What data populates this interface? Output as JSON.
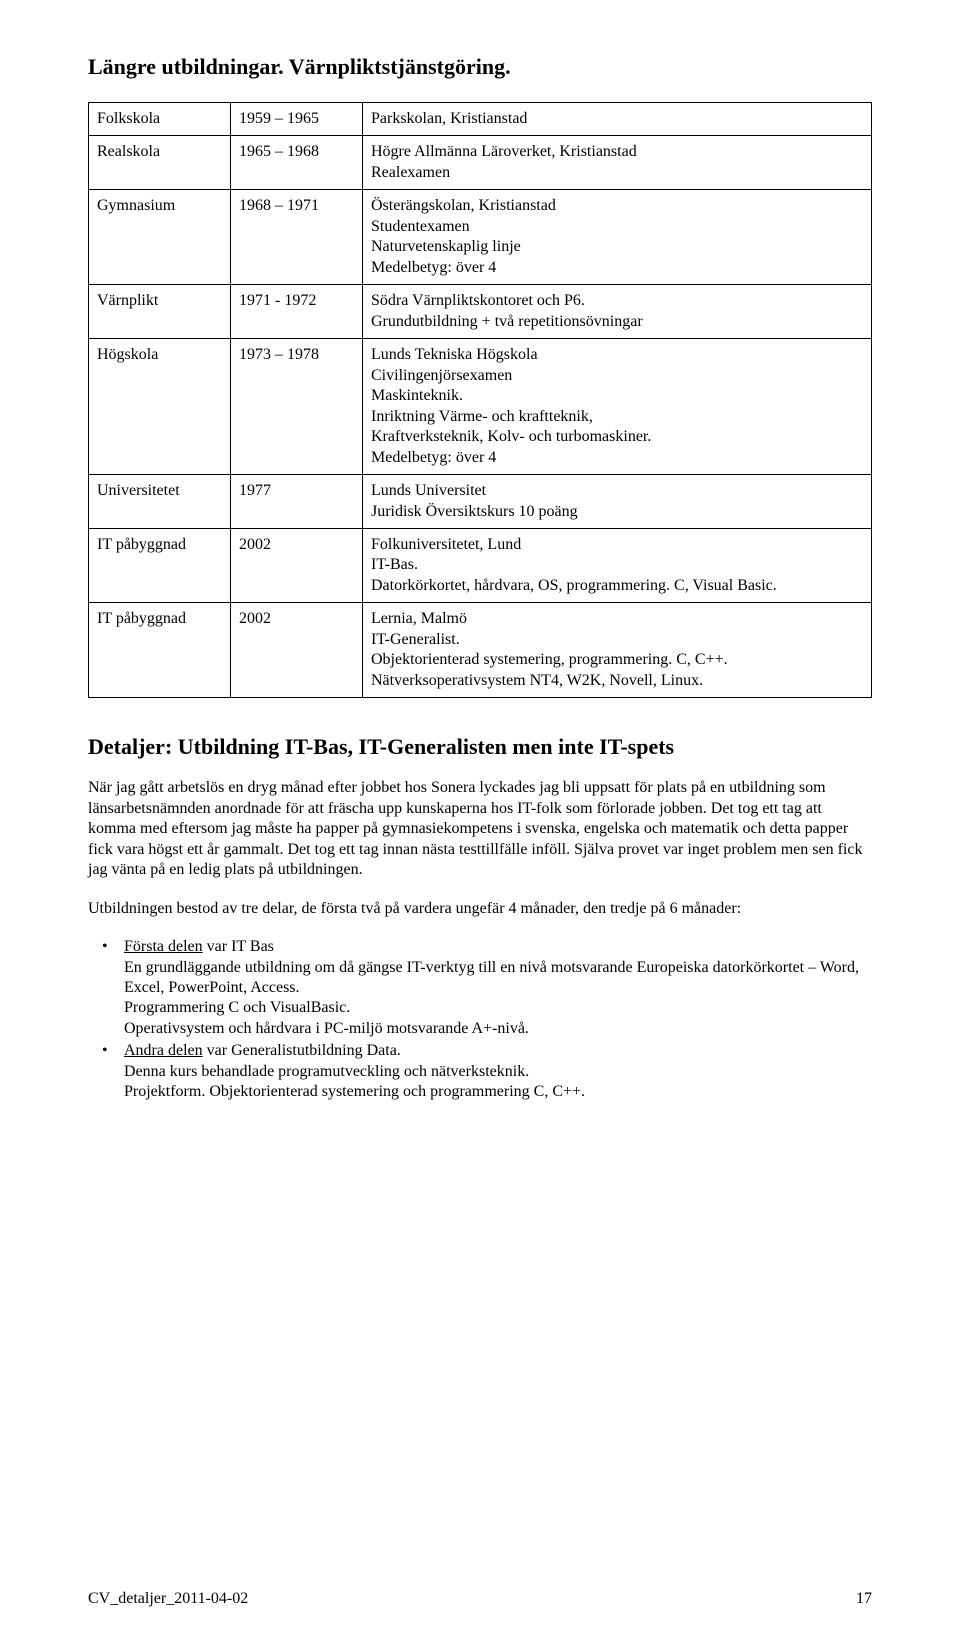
{
  "heading": "Längre utbildningar. Värnpliktstjänstgöring.",
  "table": {
    "rows": [
      {
        "c1": "Folkskola",
        "c2": "1959 – 1965",
        "c3": "Parkskolan, Kristianstad"
      },
      {
        "c1": "Realskola",
        "c2": "1965 – 1968",
        "c3": "Högre Allmänna Läroverket, Kristianstad\nRealexamen"
      },
      {
        "c1": "Gymnasium",
        "c2": "1968 – 1971",
        "c3": "Österängskolan, Kristianstad\nStudentexamen\nNaturvetenskaplig linje\nMedelbetyg: över 4"
      },
      {
        "c1": "Värnplikt",
        "c2": "1971 - 1972",
        "c3": "Södra Värnpliktskontoret och P6.\nGrundutbildning + två repetitionsövningar"
      },
      {
        "c1": "Högskola",
        "c2": "1973 – 1978",
        "c3": "Lunds Tekniska Högskola\nCivilingenjörsexamen\nMaskinteknik.\nInriktning Värme- och kraftteknik,\nKraftverksteknik, Kolv- och turbomaskiner.\nMedelbetyg: över 4"
      },
      {
        "c1": "Universitetet",
        "c2": "1977",
        "c3": "Lunds Universitet\nJuridisk Översiktskurs 10 poäng"
      },
      {
        "c1": "IT påbyggnad",
        "c2": "2002",
        "c3": "Folkuniversitetet, Lund\nIT-Bas.\nDatorkörkortet, hårdvara, OS, programmering. C, Visual Basic."
      },
      {
        "c1": "IT påbyggnad",
        "c2": "2002",
        "c3": "Lernia, Malmö\nIT-Generalist.\nObjektorienterad systemering, programmering. C, C++. Nätverksoperativsystem NT4, W2K, Novell, Linux."
      }
    ]
  },
  "subheading": "Detaljer: Utbildning IT-Bas, IT-Generalisten men inte IT-spets",
  "para1": "När jag gått arbetslös en dryg månad efter jobbet hos Sonera lyckades jag bli uppsatt för plats på en utbildning som länsarbetsnämnden anordnade för att fräscha upp kunskaperna hos IT-folk som förlorade jobben. Det tog ett tag att komma med eftersom jag måste ha papper på gymnasiekompetens i svenska, engelska och matematik och detta papper fick vara högst ett år gammalt. Det tog ett tag innan nästa testtillfälle inföll. Själva provet var inget problem men sen fick jag vänta på en ledig plats på utbildningen.",
  "para2": "Utbildningen bestod av tre delar, de första två på vardera ungefär 4 månader, den tredje på 6 månader:",
  "bullets": {
    "b1_u": "Första delen",
    "b1_rest": " var IT Bas",
    "b1_lines": "En grundläggande utbildning om då gängse IT-verktyg till en nivå motsvarande Europeiska datorkörkortet – Word, Excel, PowerPoint, Access.\nProgrammering C och VisualBasic.\nOperativsystem och hårdvara i PC-miljö motsvarande A+-nivå.",
    "b2_u": "Andra delen",
    "b2_rest": " var Generalistutbildning Data.",
    "b2_lines": "Denna kurs behandlade programutveckling och nätverksteknik.\nProjektform. Objektorienterad systemering och programmering C, C++."
  },
  "footer_left": "CV_detaljer_2011-04-02",
  "footer_page": "17"
}
